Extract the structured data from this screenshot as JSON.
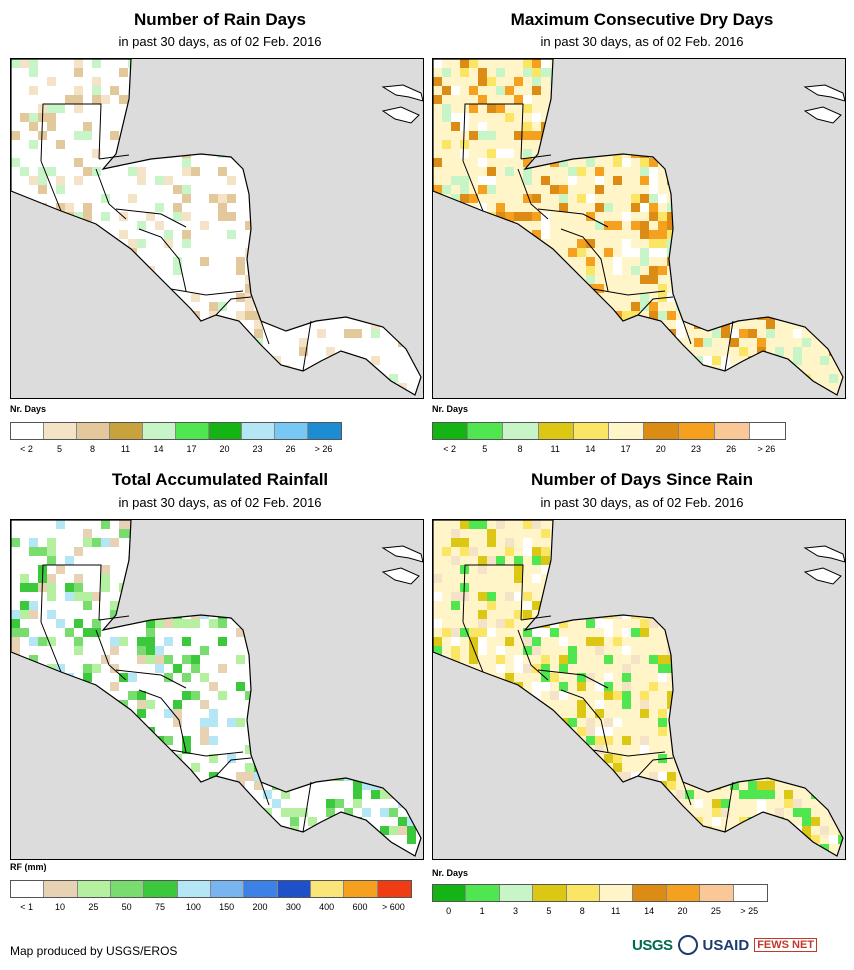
{
  "footer": {
    "credit": "Map produced by USGS/EROS"
  },
  "logos": {
    "usgs": "USGS",
    "usaid": "USAID",
    "fews": "FEWS NET"
  },
  "panels": [
    {
      "title": "Number of Rain Days",
      "subtitle": "in past 30 days, as of 02 Feb. 2016",
      "legend_title": "Nr. Days",
      "legend_colors": [
        "#ffffff",
        "#f5e3c8",
        "#e3c89c",
        "#c8a23c",
        "#c8f5c8",
        "#50e650",
        "#14b414",
        "#b4e6f5",
        "#78c8f5",
        "#1e8cd2"
      ],
      "legend_ticks": [
        "< 2",
        "5",
        "8",
        "11",
        "14",
        "17",
        "20",
        "23",
        "26",
        "> 26"
      ]
    },
    {
      "title": "Maximum Consecutive Dry Days",
      "subtitle": "in past 30 days, as of 02 Feb. 2016",
      "legend_title": "Nr. Days",
      "legend_colors": [
        "#14b414",
        "#50e650",
        "#c8f5c8",
        "#dcc814",
        "#fae664",
        "#fff5c8",
        "#dc8c14",
        "#f5a01e",
        "#fac896",
        "#ffffff"
      ],
      "legend_ticks": [
        "< 2",
        "5",
        "8",
        "11",
        "14",
        "17",
        "20",
        "23",
        "26",
        "> 26"
      ]
    },
    {
      "title": "Total Accumulated Rainfall",
      "subtitle": "in past 30 days, as of 02 Feb. 2016",
      "legend_title": "RF (mm)",
      "legend_colors": [
        "#ffffff",
        "#e8d2b4",
        "#b4f0a0",
        "#78dc6e",
        "#3cc83c",
        "#b4e6f5",
        "#78b4f0",
        "#3c82e6",
        "#1e50c8",
        "#fae678",
        "#f5a01e",
        "#f03c14"
      ],
      "legend_ticks": [
        "< 1",
        "10",
        "25",
        "50",
        "75",
        "100",
        "150",
        "200",
        "300",
        "400",
        "600",
        "> 600"
      ]
    },
    {
      "title": "Number of Days Since Rain",
      "subtitle": "in past 30 days, as of 02 Feb. 2016",
      "legend_title": "Nr. Days",
      "legend_colors": [
        "#14b414",
        "#50e650",
        "#c8f5c8",
        "#dcc814",
        "#fae664",
        "#fff5c8",
        "#dc8c14",
        "#f5a01e",
        "#fac896",
        "#ffffff"
      ],
      "legend_ticks": [
        "0",
        "1",
        "3",
        "5",
        "8",
        "11",
        "14",
        "20",
        "25",
        "> 25"
      ]
    }
  ]
}
